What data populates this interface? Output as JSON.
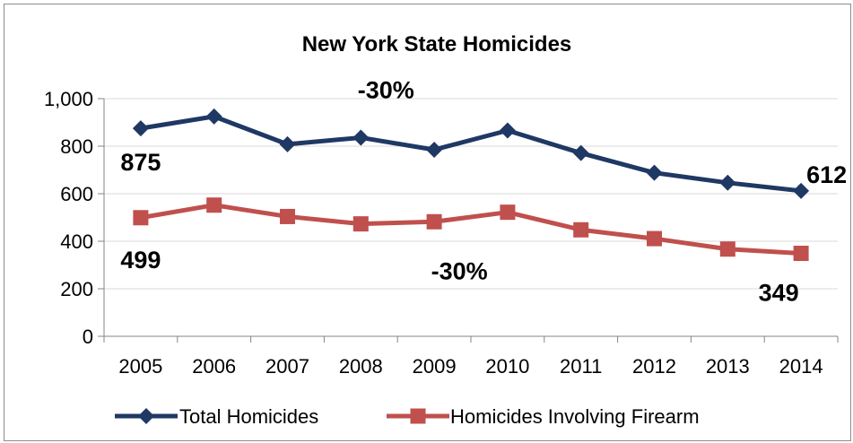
{
  "chart_data": {
    "type": "line",
    "title": "New York State Homicides",
    "xlabel": "",
    "ylabel": "",
    "categories": [
      "2005",
      "2006",
      "2007",
      "2008",
      "2009",
      "2010",
      "2011",
      "2012",
      "2013",
      "2014"
    ],
    "ylim": [
      0,
      1000
    ],
    "y_ticks": [
      0,
      200,
      400,
      600,
      800,
      1000
    ],
    "y_tick_labels": [
      "0",
      "200",
      "400",
      "600",
      "800",
      "1,000"
    ],
    "grid": true,
    "legend": "bottom",
    "series": [
      {
        "name": "Total Homicides",
        "color": "#1f3864",
        "marker": "diamond",
        "values": [
          875,
          925,
          808,
          836,
          785,
          866,
          771,
          688,
          646,
          612
        ]
      },
      {
        "name": "Homicides Involving Firearm",
        "color": "#c0504d",
        "marker": "square",
        "values": [
          499,
          552,
          504,
          473,
          482,
          522,
          448,
          411,
          367,
          349
        ]
      }
    ],
    "annotations": [
      {
        "text": "875",
        "series": 0,
        "category": "2005"
      },
      {
        "text": "612",
        "series": 0,
        "category": "2014"
      },
      {
        "text": "-30%",
        "series": 0,
        "category": "2008"
      },
      {
        "text": "499",
        "series": 1,
        "category": "2005"
      },
      {
        "text": "-30%",
        "series": 1,
        "category": "2009"
      },
      {
        "text": "349",
        "series": 1,
        "category": "2014"
      }
    ]
  }
}
